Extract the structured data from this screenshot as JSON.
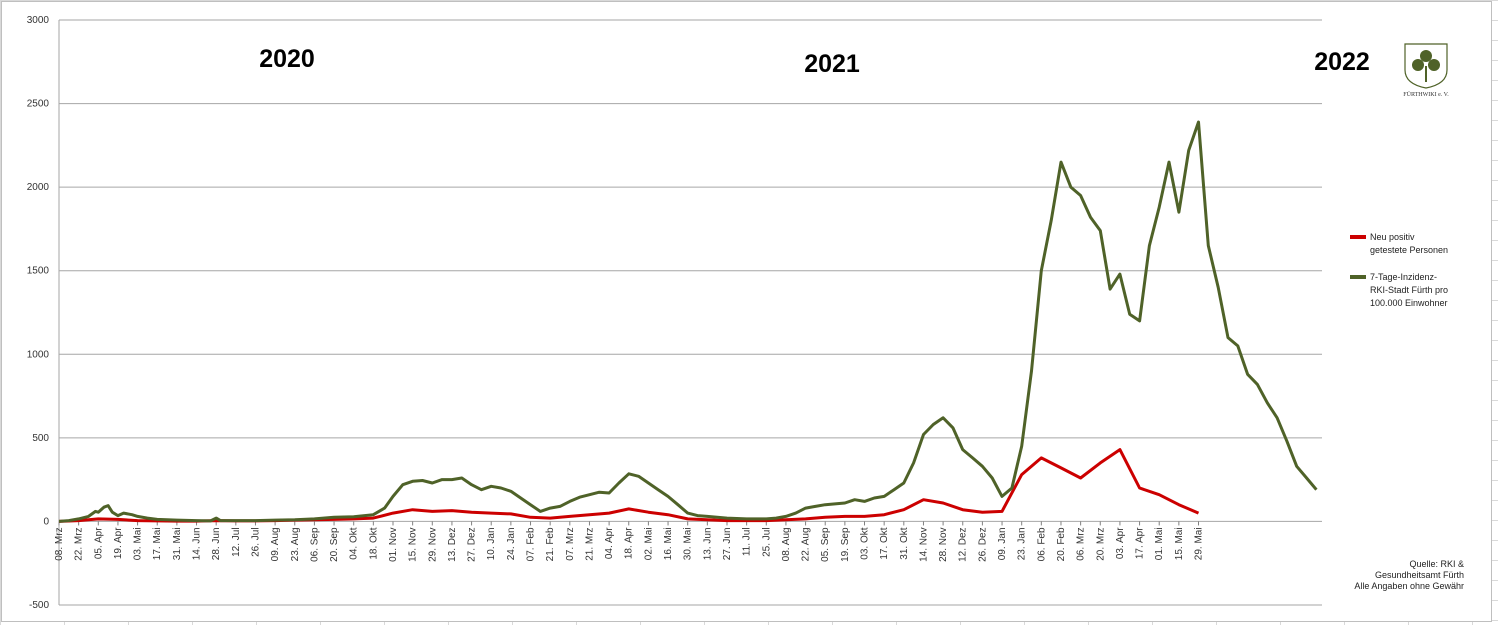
{
  "chart_data": {
    "type": "line",
    "ylim": [
      -500,
      3000
    ],
    "yticks": [
      -500,
      0,
      500,
      1000,
      1500,
      2000,
      2500,
      3000
    ],
    "grid": true,
    "legend_position": "right",
    "x_tick_labels": [
      "08. Mrz",
      "22. Mrz",
      "05. Apr",
      "19. Apr",
      "03. Mai",
      "17. Mai",
      "31. Mai",
      "14. Jun",
      "28. Jun",
      "12. Jul",
      "26. Jul",
      "09. Aug",
      "23. Aug",
      "06. Sep",
      "20. Sep",
      "04. Okt",
      "18. Okt",
      "01. Nov",
      "15. Nov",
      "29. Nov",
      "13. Dez",
      "27. Dez",
      "10. Jan",
      "24. Jan",
      "07. Feb",
      "21. Feb",
      "07. Mrz",
      "21. Mrz",
      "04. Apr",
      "18. Apr",
      "02. Mai",
      "16. Mai",
      "30. Mai",
      "13. Jun",
      "27. Jun",
      "11. Jul",
      "25. Jul",
      "08. Aug",
      "22. Aug",
      "05. Sep",
      "19. Sep",
      "03. Okt",
      "17. Okt",
      "31. Okt",
      "14. Nov",
      "28. Nov",
      "12. Dez",
      "26. Dez",
      "09. Jan",
      "23. Jan",
      "06. Feb",
      "20. Feb",
      "06. Mrz",
      "20. Mrz",
      "03. Apr",
      "17. Apr",
      "01. Mai",
      "15. Mai",
      "29. Mai"
    ],
    "x_tick_index": [
      0,
      14,
      28,
      42,
      56,
      70,
      84,
      98,
      112,
      126,
      140,
      154,
      168,
      182,
      196,
      210,
      224,
      238,
      252,
      266,
      280,
      294,
      308,
      322,
      336,
      350,
      364,
      378,
      392,
      406,
      420,
      434,
      448,
      462,
      476,
      490,
      504,
      518,
      532,
      546,
      560,
      574,
      588,
      602,
      616,
      630,
      644,
      658,
      672,
      686,
      700,
      714,
      728,
      742,
      756,
      770,
      784,
      798,
      812
    ],
    "year_labels": [
      "2020",
      "2021",
      "2022"
    ],
    "series": [
      {
        "name": "Neu positiv getestete Personen",
        "color": "#cc0000",
        "points": [
          [
            0,
            0
          ],
          [
            14,
            5
          ],
          [
            28,
            15
          ],
          [
            42,
            12
          ],
          [
            56,
            5
          ],
          [
            70,
            3
          ],
          [
            84,
            2
          ],
          [
            98,
            2
          ],
          [
            112,
            5
          ],
          [
            126,
            3
          ],
          [
            140,
            3
          ],
          [
            154,
            5
          ],
          [
            168,
            8
          ],
          [
            182,
            10
          ],
          [
            196,
            12
          ],
          [
            210,
            15
          ],
          [
            224,
            20
          ],
          [
            238,
            50
          ],
          [
            252,
            70
          ],
          [
            266,
            60
          ],
          [
            280,
            65
          ],
          [
            294,
            55
          ],
          [
            308,
            50
          ],
          [
            322,
            45
          ],
          [
            336,
            25
          ],
          [
            350,
            20
          ],
          [
            364,
            30
          ],
          [
            378,
            40
          ],
          [
            392,
            50
          ],
          [
            406,
            75
          ],
          [
            420,
            55
          ],
          [
            434,
            40
          ],
          [
            448,
            15
          ],
          [
            462,
            10
          ],
          [
            476,
            5
          ],
          [
            490,
            5
          ],
          [
            504,
            5
          ],
          [
            518,
            10
          ],
          [
            532,
            15
          ],
          [
            546,
            25
          ],
          [
            560,
            30
          ],
          [
            574,
            30
          ],
          [
            588,
            40
          ],
          [
            602,
            70
          ],
          [
            616,
            130
          ],
          [
            630,
            110
          ],
          [
            644,
            70
          ],
          [
            658,
            55
          ],
          [
            672,
            60
          ],
          [
            686,
            280
          ],
          [
            700,
            380
          ],
          [
            714,
            320
          ],
          [
            728,
            260
          ],
          [
            742,
            350
          ],
          [
            756,
            430
          ],
          [
            770,
            200
          ],
          [
            784,
            160
          ],
          [
            798,
            100
          ],
          [
            812,
            50
          ]
        ]
      },
      {
        "name": "7-Tage-Inzidenz- RKI-Stadt Fürth pro 100.000 Einwohner",
        "color": "#4f6228",
        "points": [
          [
            0,
            0
          ],
          [
            7,
            5
          ],
          [
            14,
            15
          ],
          [
            21,
            30
          ],
          [
            26,
            60
          ],
          [
            28,
            55
          ],
          [
            32,
            85
          ],
          [
            35,
            95
          ],
          [
            38,
            55
          ],
          [
            42,
            35
          ],
          [
            46,
            50
          ],
          [
            52,
            40
          ],
          [
            56,
            30
          ],
          [
            63,
            20
          ],
          [
            70,
            12
          ],
          [
            84,
            8
          ],
          [
            98,
            5
          ],
          [
            108,
            3
          ],
          [
            112,
            20
          ],
          [
            115,
            5
          ],
          [
            126,
            5
          ],
          [
            140,
            5
          ],
          [
            154,
            8
          ],
          [
            168,
            10
          ],
          [
            182,
            15
          ],
          [
            196,
            25
          ],
          [
            210,
            28
          ],
          [
            224,
            40
          ],
          [
            232,
            80
          ],
          [
            238,
            150
          ],
          [
            245,
            220
          ],
          [
            252,
            240
          ],
          [
            259,
            245
          ],
          [
            266,
            230
          ],
          [
            273,
            250
          ],
          [
            280,
            250
          ],
          [
            287,
            260
          ],
          [
            294,
            220
          ],
          [
            301,
            190
          ],
          [
            308,
            210
          ],
          [
            315,
            200
          ],
          [
            322,
            180
          ],
          [
            329,
            140
          ],
          [
            336,
            100
          ],
          [
            343,
            60
          ],
          [
            350,
            80
          ],
          [
            357,
            90
          ],
          [
            364,
            120
          ],
          [
            371,
            145
          ],
          [
            378,
            160
          ],
          [
            385,
            175
          ],
          [
            392,
            170
          ],
          [
            399,
            230
          ],
          [
            406,
            285
          ],
          [
            413,
            270
          ],
          [
            420,
            230
          ],
          [
            427,
            190
          ],
          [
            434,
            150
          ],
          [
            441,
            100
          ],
          [
            448,
            50
          ],
          [
            455,
            35
          ],
          [
            462,
            30
          ],
          [
            476,
            20
          ],
          [
            490,
            15
          ],
          [
            504,
            15
          ],
          [
            511,
            20
          ],
          [
            518,
            30
          ],
          [
            525,
            50
          ],
          [
            532,
            80
          ],
          [
            539,
            90
          ],
          [
            546,
            100
          ],
          [
            553,
            105
          ],
          [
            560,
            110
          ],
          [
            567,
            130
          ],
          [
            574,
            120
          ],
          [
            581,
            140
          ],
          [
            588,
            150
          ],
          [
            595,
            190
          ],
          [
            602,
            230
          ],
          [
            609,
            350
          ],
          [
            616,
            520
          ],
          [
            623,
            580
          ],
          [
            630,
            620
          ],
          [
            637,
            560
          ],
          [
            644,
            430
          ],
          [
            651,
            380
          ],
          [
            658,
            330
          ],
          [
            665,
            260
          ],
          [
            672,
            150
          ],
          [
            679,
            200
          ],
          [
            686,
            450
          ],
          [
            693,
            900
          ],
          [
            700,
            1500
          ],
          [
            707,
            1800
          ],
          [
            714,
            2150
          ],
          [
            721,
            2000
          ],
          [
            728,
            1950
          ],
          [
            735,
            1820
          ],
          [
            742,
            1740
          ],
          [
            749,
            1390
          ],
          [
            756,
            1480
          ],
          [
            763,
            1240
          ],
          [
            770,
            1200
          ],
          [
            777,
            1650
          ],
          [
            784,
            1880
          ],
          [
            791,
            2150
          ],
          [
            798,
            1850
          ],
          [
            805,
            2220
          ],
          [
            812,
            2390
          ],
          [
            819,
            1650
          ],
          [
            826,
            1400
          ],
          [
            833,
            1100
          ],
          [
            840,
            1050
          ],
          [
            847,
            880
          ],
          [
            854,
            820
          ],
          [
            861,
            710
          ],
          [
            868,
            620
          ],
          [
            875,
            480
          ],
          [
            882,
            330
          ],
          [
            889,
            260
          ],
          [
            896,
            190
          ]
        ]
      }
    ]
  },
  "legend": [
    {
      "color": "#cc0000",
      "lines": [
        "Neu positiv",
        "getestete Personen"
      ]
    },
    {
      "color": "#4f6228",
      "lines": [
        "7-Tage-Inzidenz-",
        "RKI-Stadt Fürth pro",
        "100.000 Einwohner"
      ]
    }
  ],
  "source_lines": [
    "Quelle: RKI &",
    "Gesundheitsamt Fürth",
    "Alle Angaben ohne Gewähr"
  ],
  "logo_text": "FÜRTHWIKI e. V."
}
